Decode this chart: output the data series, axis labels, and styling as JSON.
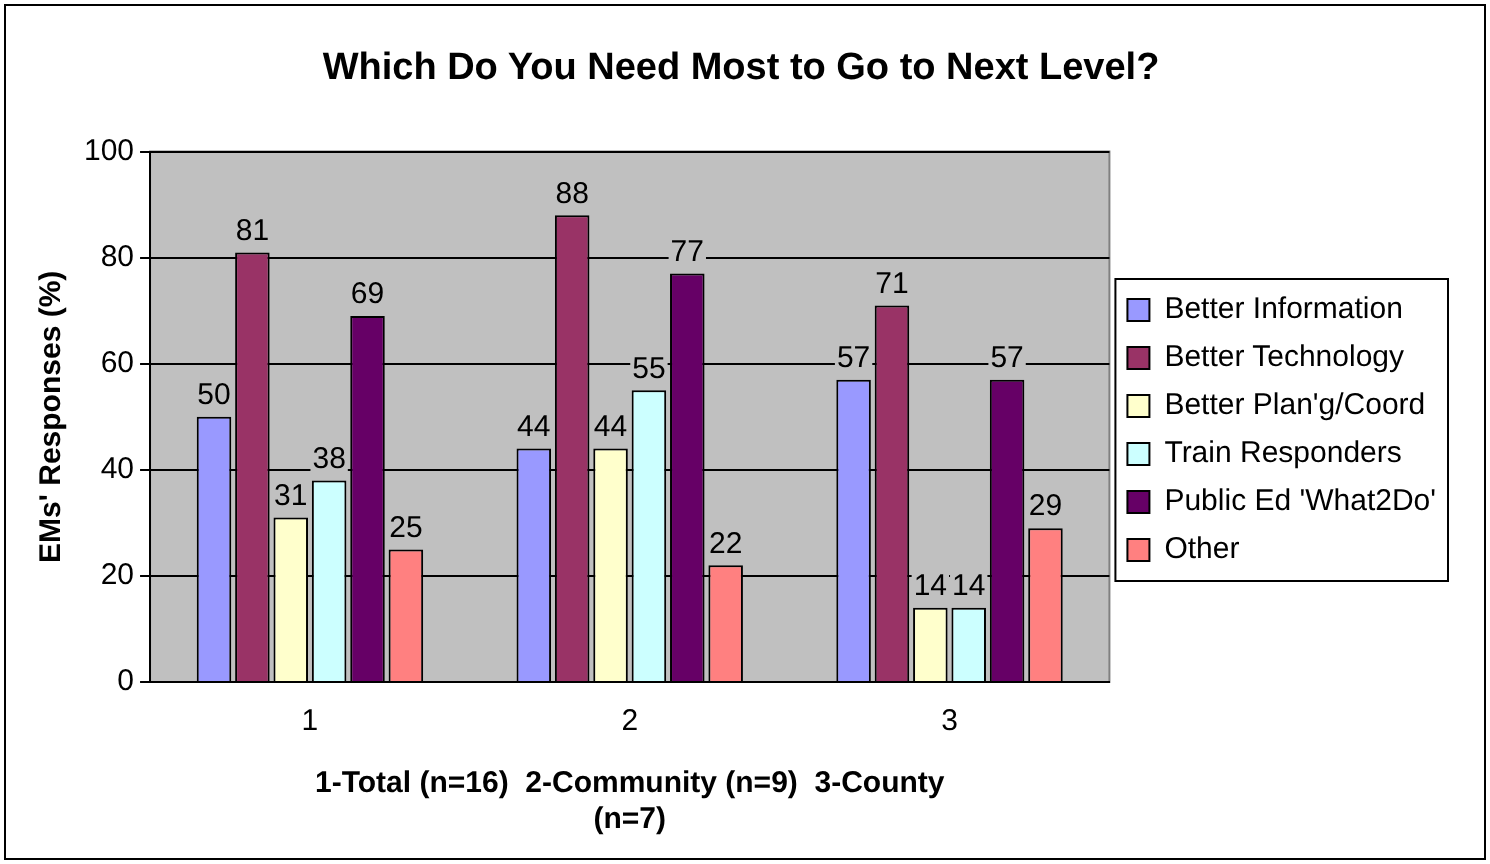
{
  "chart_data": {
    "type": "bar",
    "title": "Which Do You Need Most to Go to Next Level?",
    "xlabel": "1-Total (n=16)  2-Community (n=9)  3-County (n=7)",
    "ylabel": "EMs' Responses (%)",
    "categories": [
      "1",
      "2",
      "3"
    ],
    "series": [
      {
        "name": "Better Information",
        "color": "#9999ff",
        "values": [
          50,
          44,
          57
        ]
      },
      {
        "name": "Better Technology",
        "color": "#993366",
        "values": [
          81,
          88,
          71
        ]
      },
      {
        "name": "Better Plan'g/Coord",
        "color": "#ffffcc",
        "values": [
          31,
          44,
          14
        ]
      },
      {
        "name": "Train Responders",
        "color": "#ccffff",
        "values": [
          38,
          55,
          14
        ]
      },
      {
        "name": "Public Ed 'What2Do'",
        "color": "#660066",
        "values": [
          69,
          77,
          57
        ]
      },
      {
        "name": "Other",
        "color": "#ff8080",
        "values": [
          25,
          22,
          29
        ]
      }
    ],
    "ylim": [
      0,
      100
    ],
    "yticks": [
      0,
      20,
      40,
      60,
      80,
      100
    ],
    "grid": "y",
    "legend": "right",
    "data_labels": true
  }
}
